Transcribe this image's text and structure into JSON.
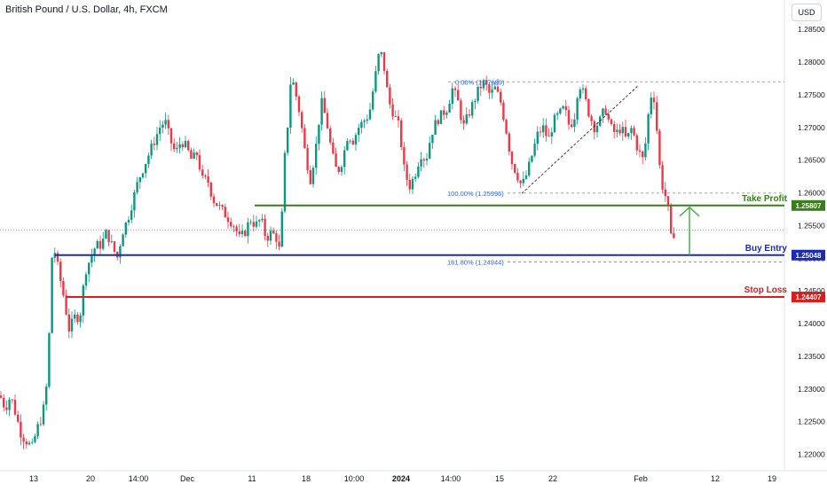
{
  "title": "British Pound / U.S. Dollar, 4h, FXCM",
  "currency": "USD",
  "chart_data": {
    "type": "candlestick",
    "y_ticks": [
      "1.28500",
      "1.28000",
      "1.27500",
      "1.27000",
      "1.26500",
      "1.26000",
      "1.25500",
      "1.25000",
      "1.24500",
      "1.24000",
      "1.23500",
      "1.23000",
      "1.22500",
      "1.22000"
    ],
    "y_tick_values": [
      1.285,
      1.28,
      1.275,
      1.27,
      1.265,
      1.26,
      1.255,
      1.25,
      1.245,
      1.24,
      1.235,
      1.23,
      1.225,
      1.22
    ],
    "x_ticks": [
      "13",
      "20",
      "14:00",
      "Dec",
      "11",
      "18",
      "10:00",
      "2024",
      "14:00",
      "15",
      "22",
      "Feb",
      "12",
      "19"
    ],
    "ylim": [
      1.2175,
      1.2895
    ],
    "colors": {
      "up": "#089981",
      "down": "#f23645",
      "profit": "#3a7d1a",
      "entry": "#1a2bb8",
      "stop": "#e01b1b",
      "fib": "#2962ff"
    },
    "levels": [
      {
        "name": "Take Profit",
        "value": 1.25807,
        "label": "1.25807",
        "color": "#3a7d1a"
      },
      {
        "name": "Buy Entry",
        "value": 1.25048,
        "label": "1.25048",
        "color": "#1a2bb8"
      },
      {
        "name": "Stop Loss",
        "value": 1.24407,
        "label": "1.24407",
        "color": "#e01b1b"
      }
    ],
    "fib_labels": [
      {
        "text": "0.00% (1.27699)",
        "value": 1.27699
      },
      {
        "text": "100.00% (1.25996)",
        "value": 1.25996
      },
      {
        "text": "161.80% (1.24944)",
        "value": 1.24944
      }
    ],
    "price_path": [
      [
        0,
        1.229
      ],
      [
        6,
        1.227
      ],
      [
        12,
        1.229
      ],
      [
        18,
        1.226
      ],
      [
        24,
        1.223
      ],
      [
        30,
        1.222
      ],
      [
        36,
        1.221
      ],
      [
        42,
        1.224
      ],
      [
        48,
        1.226
      ],
      [
        54,
        1.232
      ],
      [
        58,
        1.25
      ],
      [
        62,
        1.251
      ],
      [
        66,
        1.248
      ],
      [
        72,
        1.244
      ],
      [
        78,
        1.239
      ],
      [
        84,
        1.241
      ],
      [
        90,
        1.241
      ],
      [
        96,
        1.248
      ],
      [
        102,
        1.25
      ],
      [
        108,
        1.252
      ],
      [
        114,
        1.252
      ],
      [
        120,
        1.254
      ],
      [
        126,
        1.252
      ],
      [
        132,
        1.25
      ],
      [
        138,
        1.254
      ],
      [
        144,
        1.256
      ],
      [
        150,
        1.259
      ],
      [
        156,
        1.262
      ],
      [
        162,
        1.264
      ],
      [
        168,
        1.266
      ],
      [
        174,
        1.268
      ],
      [
        180,
        1.27
      ],
      [
        186,
        1.271
      ],
      [
        192,
        1.268
      ],
      [
        198,
        1.266
      ],
      [
        204,
        1.268
      ],
      [
        210,
        1.267
      ],
      [
        216,
        1.265
      ],
      [
        222,
        1.266
      ],
      [
        228,
        1.262
      ],
      [
        234,
        1.262
      ],
      [
        240,
        1.259
      ],
      [
        246,
        1.258
      ],
      [
        252,
        1.257
      ],
      [
        258,
        1.256
      ],
      [
        264,
        1.255
      ],
      [
        270,
        1.253
      ],
      [
        276,
        1.254
      ],
      [
        282,
        1.256
      ],
      [
        288,
        1.255
      ],
      [
        294,
        1.256
      ],
      [
        300,
        1.253
      ],
      [
        306,
        1.254
      ],
      [
        312,
        1.253
      ],
      [
        316,
        1.2505
      ],
      [
        320,
        1.264
      ],
      [
        324,
        1.27
      ],
      [
        328,
        1.278
      ],
      [
        332,
        1.276
      ],
      [
        338,
        1.272
      ],
      [
        344,
        1.266
      ],
      [
        350,
        1.262
      ],
      [
        356,
        1.267
      ],
      [
        362,
        1.274
      ],
      [
        368,
        1.271
      ],
      [
        374,
        1.266
      ],
      [
        380,
        1.263
      ],
      [
        386,
        1.265
      ],
      [
        392,
        1.269
      ],
      [
        398,
        1.268
      ],
      [
        404,
        1.27
      ],
      [
        410,
        1.271
      ],
      [
        416,
        1.272
      ],
      [
        422,
        1.277
      ],
      [
        428,
        1.282
      ],
      [
        432,
        1.28
      ],
      [
        438,
        1.274
      ],
      [
        444,
        1.272
      ],
      [
        450,
        1.27
      ],
      [
        456,
        1.263
      ],
      [
        462,
        1.261
      ],
      [
        468,
        1.263
      ],
      [
        474,
        1.266
      ],
      [
        480,
        1.265
      ],
      [
        486,
        1.269
      ],
      [
        492,
        1.271
      ],
      [
        498,
        1.272
      ],
      [
        504,
        1.273
      ],
      [
        510,
        1.276
      ],
      [
        516,
        1.274
      ],
      [
        522,
        1.27
      ],
      [
        528,
        1.272
      ],
      [
        534,
        1.274
      ],
      [
        540,
        1.276
      ],
      [
        546,
        1.277
      ],
      [
        552,
        1.275
      ],
      [
        558,
        1.276
      ],
      [
        564,
        1.274
      ],
      [
        570,
        1.27
      ],
      [
        576,
        1.265
      ],
      [
        582,
        1.263
      ],
      [
        588,
        1.261
      ],
      [
        594,
        1.263
      ],
      [
        600,
        1.266
      ],
      [
        606,
        1.269
      ],
      [
        612,
        1.27
      ],
      [
        618,
        1.268
      ],
      [
        624,
        1.271
      ],
      [
        630,
        1.272
      ],
      [
        636,
        1.273
      ],
      [
        642,
        1.27
      ],
      [
        648,
        1.272
      ],
      [
        652,
        1.277
      ],
      [
        658,
        1.275
      ],
      [
        664,
        1.272
      ],
      [
        670,
        1.27
      ],
      [
        676,
        1.271
      ],
      [
        682,
        1.273
      ],
      [
        688,
        1.27
      ],
      [
        694,
        1.269
      ],
      [
        700,
        1.27
      ],
      [
        706,
        1.268
      ],
      [
        712,
        1.27
      ],
      [
        718,
        1.267
      ],
      [
        724,
        1.265
      ],
      [
        728,
        1.268
      ],
      [
        732,
        1.274
      ],
      [
        736,
        1.276
      ],
      [
        740,
        1.27
      ],
      [
        744,
        1.263
      ],
      [
        748,
        1.26
      ],
      [
        752,
        1.259
      ],
      [
        756,
        1.253
      ],
      [
        760,
        1.254
      ],
      [
        764,
        1.254
      ]
    ]
  }
}
